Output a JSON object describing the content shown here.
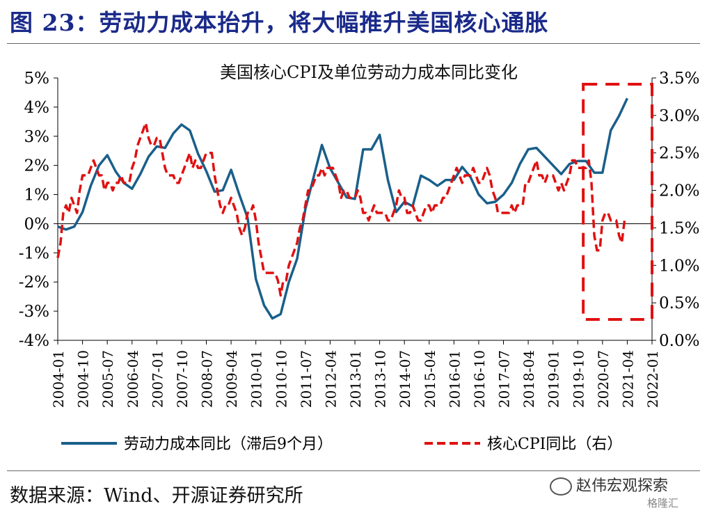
{
  "figure_title": "图 23：劳动力成本抬升，将大幅推升美国核心通胀",
  "source": "数据来源：Wind、开源证券研究所",
  "watermark": "赵伟宏观探索",
  "watermark_sub": "格隆汇",
  "colors": {
    "title": "#1a2a8a",
    "labor": "#1a5f8a",
    "cpi": "#e01010",
    "box": "#e01010"
  },
  "chart_data": {
    "type": "line",
    "title": "美国核心CPI及单位劳动力成本同比变化",
    "x_ticks": [
      "2004-01",
      "2004-10",
      "2005-07",
      "2006-04",
      "2007-01",
      "2007-10",
      "2008-07",
      "2009-04",
      "2010-01",
      "2010-10",
      "2011-07",
      "2012-04",
      "2013-01",
      "2013-10",
      "2014-07",
      "2015-04",
      "2016-01",
      "2016-10",
      "2017-07",
      "2018-04",
      "2019-01",
      "2019-10",
      "2020-07",
      "2021-04",
      "2022-01"
    ],
    "left_axis": {
      "min": -4,
      "max": 5,
      "step": 1,
      "ticks": [
        "-4%",
        "-3%",
        "-2%",
        "-1%",
        "0%",
        "1%",
        "2%",
        "3%",
        "4%",
        "5%"
      ]
    },
    "right_axis": {
      "min": 0.0,
      "max": 3.5,
      "step": 0.5,
      "ticks": [
        "0.0%",
        "0.5%",
        "1.0%",
        "1.5%",
        "2.0%",
        "2.5%",
        "3.0%",
        "3.5%"
      ]
    },
    "legend_position": "bottom",
    "highlight_box": {
      "style": "dashed",
      "from": "2019-12",
      "to": "2022-01"
    },
    "series": [
      {
        "name": "劳动力成本同比（滞后9个月）",
        "axis": "left",
        "style": "solid",
        "points": [
          [
            "2004-01",
            -0.1
          ],
          [
            "2004-04",
            -0.2
          ],
          [
            "2004-07",
            -0.1
          ],
          [
            "2004-10",
            0.4
          ],
          [
            "2005-01",
            1.3
          ],
          [
            "2005-04",
            2.0
          ],
          [
            "2005-07",
            2.35
          ],
          [
            "2005-10",
            1.8
          ],
          [
            "2006-01",
            1.4
          ],
          [
            "2006-04",
            1.2
          ],
          [
            "2006-07",
            1.7
          ],
          [
            "2006-10",
            2.3
          ],
          [
            "2007-01",
            2.65
          ],
          [
            "2007-04",
            2.6
          ],
          [
            "2007-07",
            3.1
          ],
          [
            "2007-10",
            3.4
          ],
          [
            "2008-01",
            3.2
          ],
          [
            "2008-04",
            2.4
          ],
          [
            "2008-07",
            1.8
          ],
          [
            "2008-10",
            1.1
          ],
          [
            "2009-01",
            1.15
          ],
          [
            "2009-04",
            1.85
          ],
          [
            "2009-07",
            1.0
          ],
          [
            "2009-10",
            0.2
          ],
          [
            "2010-01",
            -1.9
          ],
          [
            "2010-04",
            -2.8
          ],
          [
            "2010-07",
            -3.25
          ],
          [
            "2010-10",
            -3.1
          ],
          [
            "2011-01",
            -2.0
          ],
          [
            "2011-04",
            -1.2
          ],
          [
            "2011-07",
            0.5
          ],
          [
            "2011-10",
            1.6
          ],
          [
            "2012-01",
            2.7
          ],
          [
            "2012-04",
            1.9
          ],
          [
            "2012-07",
            1.4
          ],
          [
            "2012-10",
            0.9
          ],
          [
            "2013-01",
            0.85
          ],
          [
            "2013-04",
            2.55
          ],
          [
            "2013-07",
            2.55
          ],
          [
            "2013-10",
            3.05
          ],
          [
            "2014-01",
            1.5
          ],
          [
            "2014-04",
            0.4
          ],
          [
            "2014-07",
            0.75
          ],
          [
            "2014-10",
            0.6
          ],
          [
            "2015-01",
            1.65
          ],
          [
            "2015-04",
            1.5
          ],
          [
            "2015-07",
            1.3
          ],
          [
            "2015-10",
            1.5
          ],
          [
            "2016-01",
            1.5
          ],
          [
            "2016-04",
            1.95
          ],
          [
            "2016-07",
            1.6
          ],
          [
            "2016-10",
            1.0
          ],
          [
            "2017-01",
            0.7
          ],
          [
            "2017-04",
            0.75
          ],
          [
            "2017-07",
            1.0
          ],
          [
            "2017-10",
            1.4
          ],
          [
            "2018-01",
            2.05
          ],
          [
            "2018-04",
            2.55
          ],
          [
            "2018-07",
            2.6
          ],
          [
            "2018-10",
            2.3
          ],
          [
            "2019-01",
            2.0
          ],
          [
            "2019-04",
            1.7
          ],
          [
            "2019-07",
            2.05
          ],
          [
            "2019-10",
            2.15
          ],
          [
            "2020-01",
            2.15
          ],
          [
            "2020-04",
            1.75
          ],
          [
            "2020-07",
            1.75
          ],
          [
            "2020-10",
            3.2
          ],
          [
            "2021-01",
            3.7
          ],
          [
            "2021-04",
            4.3
          ]
        ]
      },
      {
        "name": "核心CPI同比（右）",
        "axis": "right",
        "style": "dashed",
        "points": [
          [
            "2004-01",
            1.1
          ],
          [
            "2004-02",
            1.3
          ],
          [
            "2004-03",
            1.7
          ],
          [
            "2004-04",
            1.8
          ],
          [
            "2004-05",
            1.7
          ],
          [
            "2004-06",
            1.9
          ],
          [
            "2004-07",
            1.8
          ],
          [
            "2004-08",
            1.7
          ],
          [
            "2004-09",
            2.0
          ],
          [
            "2004-10",
            2.2
          ],
          [
            "2004-11",
            2.2
          ],
          [
            "2004-12",
            2.2
          ],
          [
            "2005-01",
            2.3
          ],
          [
            "2005-02",
            2.4
          ],
          [
            "2005-03",
            2.3
          ],
          [
            "2005-04",
            2.2
          ],
          [
            "2005-05",
            2.2
          ],
          [
            "2005-06",
            2.0
          ],
          [
            "2005-07",
            2.1
          ],
          [
            "2005-08",
            2.1
          ],
          [
            "2005-09",
            2.0
          ],
          [
            "2005-10",
            2.1
          ],
          [
            "2005-11",
            2.1
          ],
          [
            "2005-12",
            2.2
          ],
          [
            "2006-01",
            2.1
          ],
          [
            "2006-02",
            2.1
          ],
          [
            "2006-03",
            2.1
          ],
          [
            "2006-04",
            2.3
          ],
          [
            "2006-05",
            2.4
          ],
          [
            "2006-06",
            2.6
          ],
          [
            "2006-07",
            2.7
          ],
          [
            "2006-08",
            2.8
          ],
          [
            "2006-09",
            2.9
          ],
          [
            "2006-10",
            2.7
          ],
          [
            "2006-11",
            2.6
          ],
          [
            "2006-12",
            2.6
          ],
          [
            "2007-01",
            2.7
          ],
          [
            "2007-02",
            2.7
          ],
          [
            "2007-03",
            2.5
          ],
          [
            "2007-04",
            2.3
          ],
          [
            "2007-05",
            2.2
          ],
          [
            "2007-06",
            2.2
          ],
          [
            "2007-07",
            2.2
          ],
          [
            "2007-08",
            2.1
          ],
          [
            "2007-09",
            2.1
          ],
          [
            "2007-10",
            2.2
          ],
          [
            "2007-11",
            2.3
          ],
          [
            "2007-12",
            2.4
          ],
          [
            "2008-01",
            2.5
          ],
          [
            "2008-02",
            2.3
          ],
          [
            "2008-03",
            2.4
          ],
          [
            "2008-04",
            2.3
          ],
          [
            "2008-05",
            2.3
          ],
          [
            "2008-06",
            2.4
          ],
          [
            "2008-07",
            2.5
          ],
          [
            "2008-08",
            2.5
          ],
          [
            "2008-09",
            2.5
          ],
          [
            "2008-10",
            2.2
          ],
          [
            "2008-11",
            2.0
          ],
          [
            "2008-12",
            1.8
          ],
          [
            "2009-01",
            1.7
          ],
          [
            "2009-02",
            1.8
          ],
          [
            "2009-03",
            1.8
          ],
          [
            "2009-04",
            1.9
          ],
          [
            "2009-05",
            1.8
          ],
          [
            "2009-06",
            1.7
          ],
          [
            "2009-07",
            1.5
          ],
          [
            "2009-08",
            1.4
          ],
          [
            "2009-09",
            1.5
          ],
          [
            "2009-10",
            1.7
          ],
          [
            "2009-11",
            1.7
          ],
          [
            "2009-12",
            1.8
          ],
          [
            "2010-01",
            1.6
          ],
          [
            "2010-02",
            1.3
          ],
          [
            "2010-03",
            1.1
          ],
          [
            "2010-04",
            0.9
          ],
          [
            "2010-05",
            0.9
          ],
          [
            "2010-06",
            0.9
          ],
          [
            "2010-07",
            0.9
          ],
          [
            "2010-08",
            0.9
          ],
          [
            "2010-09",
            0.8
          ],
          [
            "2010-10",
            0.6
          ],
          [
            "2010-11",
            0.8
          ],
          [
            "2010-12",
            0.8
          ],
          [
            "2011-01",
            1.0
          ],
          [
            "2011-02",
            1.1
          ],
          [
            "2011-03",
            1.2
          ],
          [
            "2011-04",
            1.3
          ],
          [
            "2011-05",
            1.5
          ],
          [
            "2011-06",
            1.6
          ],
          [
            "2011-07",
            1.8
          ],
          [
            "2011-08",
            2.0
          ],
          [
            "2011-09",
            2.0
          ],
          [
            "2011-10",
            2.1
          ],
          [
            "2011-11",
            2.2
          ],
          [
            "2011-12",
            2.2
          ],
          [
            "2012-01",
            2.3
          ],
          [
            "2012-02",
            2.2
          ],
          [
            "2012-03",
            2.3
          ],
          [
            "2012-04",
            2.3
          ],
          [
            "2012-05",
            2.3
          ],
          [
            "2012-06",
            2.2
          ],
          [
            "2012-07",
            2.1
          ],
          [
            "2012-08",
            1.9
          ],
          [
            "2012-09",
            2.0
          ],
          [
            "2012-10",
            2.0
          ],
          [
            "2012-11",
            1.9
          ],
          [
            "2012-12",
            1.9
          ],
          [
            "2013-01",
            1.9
          ],
          [
            "2013-02",
            2.0
          ],
          [
            "2013-03",
            1.9
          ],
          [
            "2013-04",
            1.7
          ],
          [
            "2013-05",
            1.7
          ],
          [
            "2013-06",
            1.6
          ],
          [
            "2013-07",
            1.7
          ],
          [
            "2013-08",
            1.8
          ],
          [
            "2013-09",
            1.7
          ],
          [
            "2013-10",
            1.7
          ],
          [
            "2013-11",
            1.7
          ],
          [
            "2013-12",
            1.7
          ],
          [
            "2014-01",
            1.6
          ],
          [
            "2014-02",
            1.6
          ],
          [
            "2014-03",
            1.7
          ],
          [
            "2014-04",
            1.8
          ],
          [
            "2014-05",
            2.0
          ],
          [
            "2014-06",
            1.9
          ],
          [
            "2014-07",
            1.9
          ],
          [
            "2014-08",
            1.7
          ],
          [
            "2014-09",
            1.7
          ],
          [
            "2014-10",
            1.8
          ],
          [
            "2014-11",
            1.7
          ],
          [
            "2014-12",
            1.6
          ],
          [
            "2015-01",
            1.6
          ],
          [
            "2015-02",
            1.7
          ],
          [
            "2015-03",
            1.8
          ],
          [
            "2015-04",
            1.8
          ],
          [
            "2015-05",
            1.7
          ],
          [
            "2015-06",
            1.8
          ],
          [
            "2015-07",
            1.8
          ],
          [
            "2015-08",
            1.8
          ],
          [
            "2015-09",
            1.9
          ],
          [
            "2015-10",
            1.9
          ],
          [
            "2015-11",
            2.0
          ],
          [
            "2015-12",
            2.1
          ],
          [
            "2016-01",
            2.2
          ],
          [
            "2016-02",
            2.3
          ],
          [
            "2016-03",
            2.2
          ],
          [
            "2016-04",
            2.1
          ],
          [
            "2016-05",
            2.2
          ],
          [
            "2016-06",
            2.2
          ],
          [
            "2016-07",
            2.2
          ],
          [
            "2016-08",
            2.3
          ],
          [
            "2016-09",
            2.2
          ],
          [
            "2016-10",
            2.1
          ],
          [
            "2016-11",
            2.1
          ],
          [
            "2016-12",
            2.2
          ],
          [
            "2017-01",
            2.3
          ],
          [
            "2017-02",
            2.2
          ],
          [
            "2017-03",
            2.0
          ],
          [
            "2017-04",
            1.9
          ],
          [
            "2017-05",
            1.7
          ],
          [
            "2017-06",
            1.7
          ],
          [
            "2017-07",
            1.7
          ],
          [
            "2017-08",
            1.7
          ],
          [
            "2017-09",
            1.7
          ],
          [
            "2017-10",
            1.8
          ],
          [
            "2017-11",
            1.7
          ],
          [
            "2017-12",
            1.8
          ],
          [
            "2018-01",
            1.8
          ],
          [
            "2018-02",
            1.8
          ],
          [
            "2018-03",
            2.1
          ],
          [
            "2018-04",
            2.1
          ],
          [
            "2018-05",
            2.2
          ],
          [
            "2018-06",
            2.3
          ],
          [
            "2018-07",
            2.4
          ],
          [
            "2018-08",
            2.2
          ],
          [
            "2018-09",
            2.2
          ],
          [
            "2018-10",
            2.1
          ],
          [
            "2018-11",
            2.2
          ],
          [
            "2018-12",
            2.2
          ],
          [
            "2019-01",
            2.2
          ],
          [
            "2019-02",
            2.1
          ],
          [
            "2019-03",
            2.0
          ],
          [
            "2019-04",
            2.1
          ],
          [
            "2019-05",
            2.0
          ],
          [
            "2019-06",
            2.1
          ],
          [
            "2019-07",
            2.2
          ],
          [
            "2019-08",
            2.4
          ],
          [
            "2019-09",
            2.4
          ],
          [
            "2019-10",
            2.3
          ],
          [
            "2019-11",
            2.3
          ],
          [
            "2019-12",
            2.3
          ],
          [
            "2020-01",
            2.3
          ],
          [
            "2020-02",
            2.4
          ],
          [
            "2020-03",
            2.1
          ],
          [
            "2020-04",
            1.4
          ],
          [
            "2020-05",
            1.2
          ],
          [
            "2020-06",
            1.2
          ],
          [
            "2020-07",
            1.6
          ],
          [
            "2020-08",
            1.7
          ],
          [
            "2020-09",
            1.7
          ],
          [
            "2020-10",
            1.6
          ],
          [
            "2020-11",
            1.6
          ],
          [
            "2020-12",
            1.6
          ],
          [
            "2021-01",
            1.4
          ],
          [
            "2021-02",
            1.3
          ],
          [
            "2021-03",
            1.6
          ]
        ]
      }
    ]
  }
}
